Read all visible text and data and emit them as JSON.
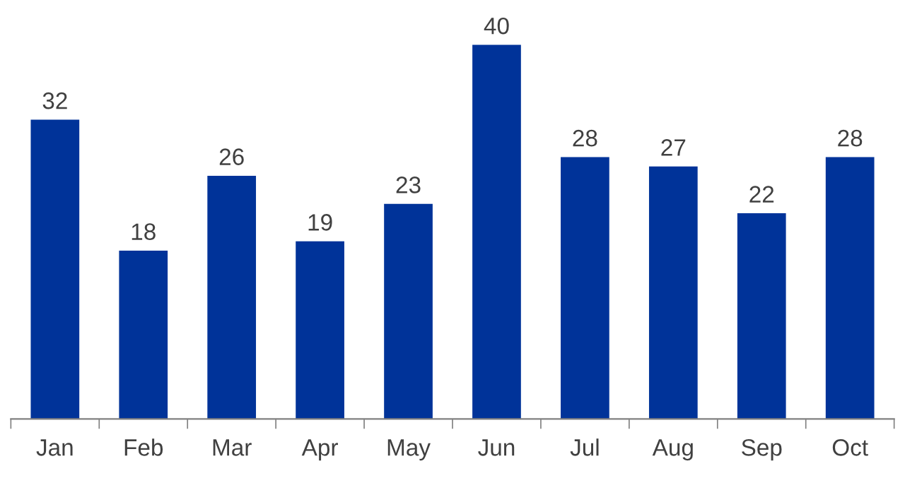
{
  "chart_data": {
    "type": "bar",
    "categories": [
      "Jan",
      "Feb",
      "Mar",
      "Apr",
      "May",
      "Jun",
      "Jul",
      "Aug",
      "Sep",
      "Oct"
    ],
    "values": [
      32,
      18,
      26,
      19,
      23,
      40,
      28,
      27,
      22,
      28
    ],
    "color": "#003399",
    "data_labels": true,
    "tick_labels": "x",
    "grid": false,
    "legend": false
  }
}
